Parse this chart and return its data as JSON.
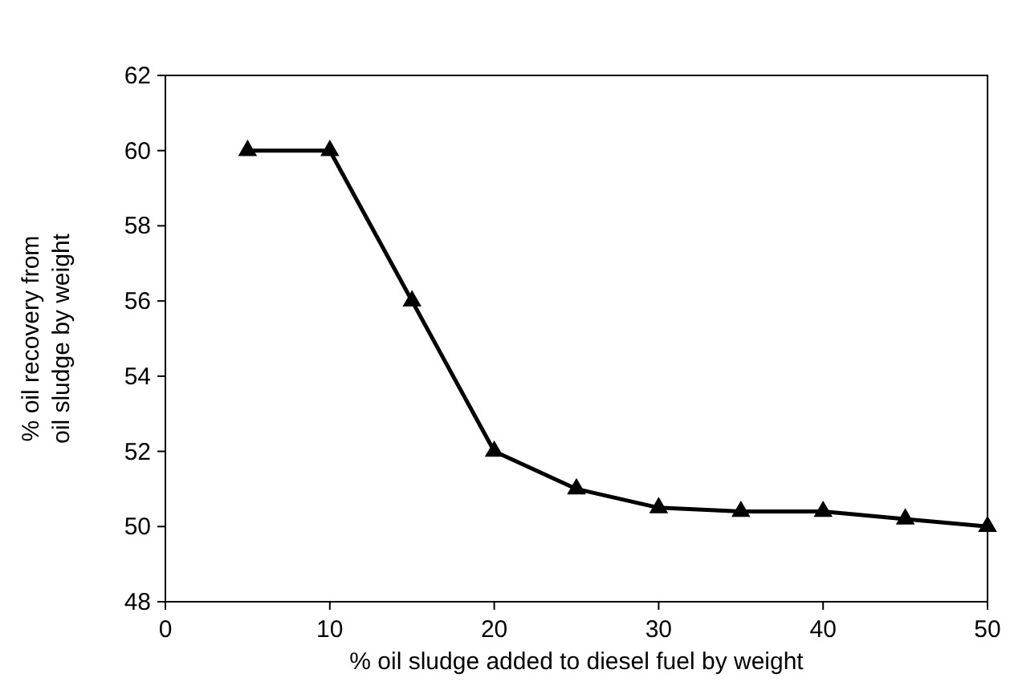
{
  "chart_data": {
    "type": "line",
    "xlabel": "% oil sludge added to diesel fuel by weight",
    "ylabel": "% oil recovery from\noil sludge by weight",
    "x": [
      5,
      10,
      15,
      20,
      25,
      30,
      35,
      40,
      45,
      50
    ],
    "series": [
      {
        "color": "#000000",
        "values": [
          60,
          60,
          56,
          52,
          51,
          50.5,
          50.4,
          50.4,
          50.2,
          50
        ]
      }
    ],
    "xlim": [
      0,
      50
    ],
    "xticks": [
      0,
      10,
      20,
      30,
      40,
      50
    ],
    "ylim": [
      48,
      62
    ],
    "yticks": [
      48,
      50,
      52,
      54,
      56,
      58,
      60,
      62
    ],
    "grid": false,
    "marker": "triangle",
    "line_style": "solid"
  }
}
